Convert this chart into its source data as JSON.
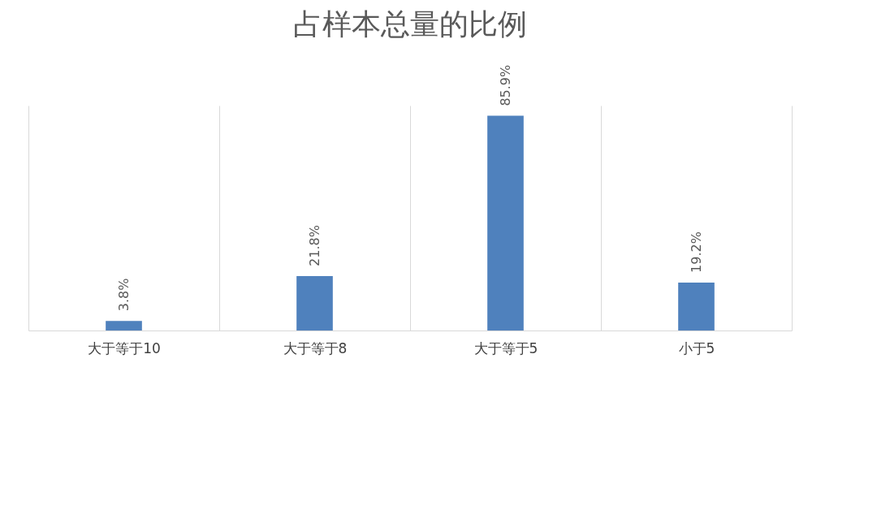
{
  "chart_data": {
    "type": "bar",
    "title": "占样本总量的比例",
    "categories": [
      "大于等于10",
      "大于等于8",
      "大于等于5",
      "小于5"
    ],
    "values": [
      3.8,
      21.8,
      85.9,
      19.2
    ],
    "value_labels": [
      "3.8%",
      "21.8%",
      "85.9%",
      "19.2%"
    ],
    "color": "#4f81bd",
    "grid": "x"
  }
}
